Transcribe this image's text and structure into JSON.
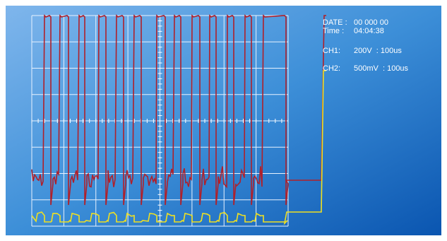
{
  "readout": {
    "date_label": "DATE :",
    "date": "00 000 00",
    "time_label": "Time :",
    "time": "04:04:38",
    "ch1_label": "CH1:",
    "ch1": "200V  : 100us",
    "ch2_label": "CH2:",
    "ch2": "500mV  : 100us"
  }
}
